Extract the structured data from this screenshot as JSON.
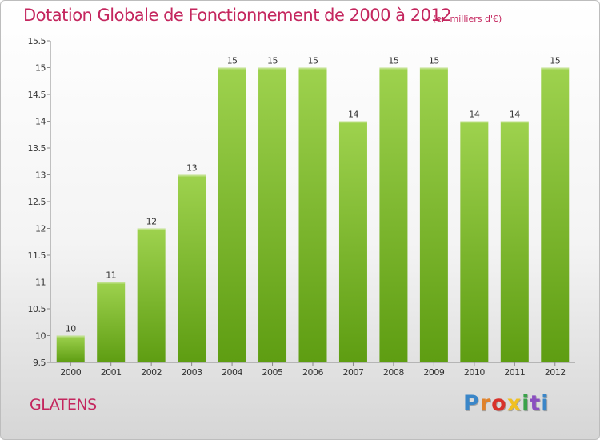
{
  "title": "Dotation Globale de Fonctionnement de 2000 à 2012",
  "subtitle": "(en milliers d'€)",
  "commune": "GLATENS",
  "logo": {
    "text": "Proxiti",
    "letter_colors": [
      "#3a86c8",
      "#e0822a",
      "#d8322b",
      "#f0c020",
      "#3aa24a",
      "#8a4fc0",
      "#3a86c8"
    ]
  },
  "colors": {
    "accent": "#c4265e",
    "bar_top": "#9ed24e",
    "bar_bottom": "#5e9d12",
    "label": "#333333",
    "axis": "#888888"
  },
  "chart_data": {
    "type": "bar",
    "categories": [
      "2000",
      "2001",
      "2002",
      "2003",
      "2004",
      "2005",
      "2006",
      "2007",
      "2008",
      "2009",
      "2010",
      "2011",
      "2012"
    ],
    "values": [
      10,
      11,
      12,
      13,
      15,
      15,
      15,
      14,
      15,
      15,
      14,
      14,
      15
    ],
    "data_labels": [
      "10",
      "11",
      "12",
      "13",
      "15",
      "15",
      "15",
      "14",
      "15",
      "15",
      "14",
      "14",
      "15"
    ],
    "ylim": [
      9.5,
      15.5
    ],
    "yticks": [
      9.5,
      10,
      10.5,
      11,
      11.5,
      12,
      12.5,
      13,
      13.5,
      14,
      14.5,
      15,
      15.5
    ],
    "ytick_labels": [
      "9.5",
      "10",
      "10.5",
      "11",
      "11.5",
      "12",
      "12.5",
      "13",
      "13.5",
      "14",
      "14.5",
      "15",
      "15.5"
    ],
    "grid": false,
    "xlabel": "",
    "ylabel": ""
  }
}
